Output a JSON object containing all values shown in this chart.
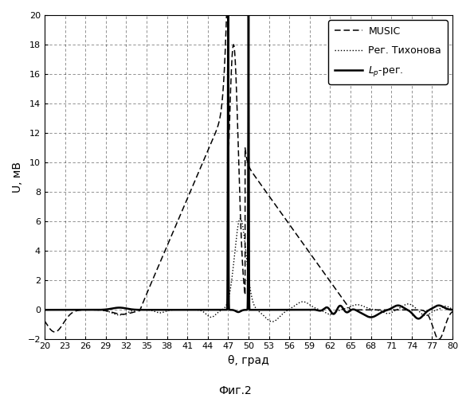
{
  "title": "",
  "xlabel": "θ, град",
  "ylabel": "U, мВ",
  "caption": "Фиг.2",
  "xlim": [
    20,
    80
  ],
  "ylim": [
    -2,
    20
  ],
  "xticks": [
    20,
    23,
    26,
    29,
    32,
    35,
    38,
    41,
    44,
    47,
    50,
    53,
    56,
    59,
    62,
    65,
    68,
    71,
    74,
    77,
    80
  ],
  "yticks": [
    -2,
    0,
    2,
    4,
    6,
    8,
    10,
    12,
    14,
    16,
    18,
    20
  ],
  "background_color": "#ffffff"
}
